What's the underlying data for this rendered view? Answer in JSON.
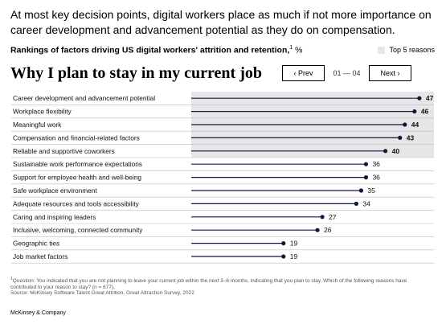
{
  "headline": "At most key decision points, digital workers place as much if not more importance on career development and advancement potential as they do on compensation.",
  "subtitle": {
    "text": "Rankings of factors driving US digital workers' attrition and retention,",
    "footnote_marker": "1",
    "unit": " %"
  },
  "legend": {
    "label": "Top 5 reasons"
  },
  "navigation": {
    "prev_label": "‹ Prev",
    "next_label": "Next ›",
    "page": "01 — 04"
  },
  "colors": {
    "line": "#0e1a3a",
    "highlight": "#e6e6e6",
    "divider": "#bdbdbd"
  },
  "chart_data": {
    "type": "bar",
    "title": "Why I plan to stay in my current job",
    "categories": [
      "Career development and advancement potential",
      "Workplace flexibility",
      "Meaningful work",
      "Compensation and financial-related factors",
      "Reliable and supportive coworkers",
      "Sustainable work performance expectations",
      "Support for employee health and well-being",
      "Safe workplace environment",
      "Adequate resources and tools accessibility",
      "Caring and inspiring leaders",
      "Inclusive, welcoming, connected community",
      "Geographic ties",
      "Job market factors"
    ],
    "values": [
      47,
      46,
      44,
      43,
      40,
      36,
      36,
      35,
      34,
      27,
      26,
      19,
      19
    ],
    "top_n_highlighted": 5,
    "xlim": [
      0,
      50
    ]
  },
  "footnote": {
    "marker": "1",
    "text": "Question: You indicated that you are not planning to leave your current job within the next 3–6 months, indicating that you plan to stay. Which of the following reasons have contributed to your reason to stay? (n = 677).",
    "source": "Source: McKinsey Software Talent Great Attrition, Great Attraction Survey, 2022"
  },
  "brand": "McKinsey & Company"
}
